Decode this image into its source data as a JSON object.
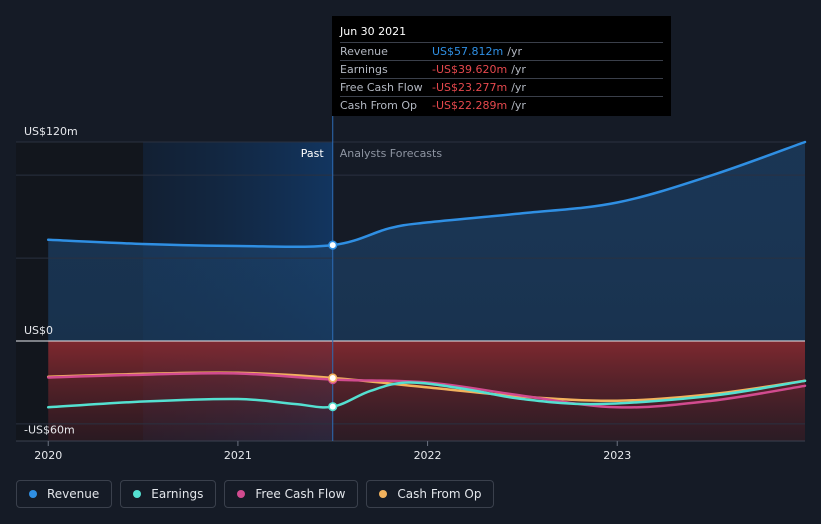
{
  "chart_data": {
    "type": "line",
    "title": "",
    "x_ticks": [
      "2020",
      "2021",
      "2022",
      "2023"
    ],
    "x_tick_values": [
      2020.0,
      2021.0,
      2022.0,
      2023.0
    ],
    "xlim": [
      2019.83,
      2023.99
    ],
    "y_axis_labels": [
      "US$120m",
      "US$0",
      "-US$60m"
    ],
    "y_axis_label_values": [
      120,
      0,
      -60
    ],
    "ylim": [
      -60,
      120
    ],
    "past_forecast_split": 2021.5,
    "past_shade_start": 2020.5,
    "region_labels": {
      "past": "Past",
      "forecast": "Analysts Forecasts"
    },
    "series": [
      {
        "name": "Revenue",
        "color": "#2f8fe3",
        "points": [
          [
            2020.0,
            61
          ],
          [
            2020.5,
            58.5
          ],
          [
            2021.0,
            57.3
          ],
          [
            2021.5,
            57.8
          ],
          [
            2021.8,
            68
          ],
          [
            2022.0,
            71.5
          ],
          [
            2022.5,
            77
          ],
          [
            2023.0,
            83.5
          ],
          [
            2023.5,
            100
          ],
          [
            2023.99,
            120
          ]
        ]
      },
      {
        "name": "Earnings",
        "color": "#54e0d1",
        "points": [
          [
            2020.0,
            -40
          ],
          [
            2020.5,
            -36.5
          ],
          [
            2021.0,
            -35
          ],
          [
            2021.3,
            -38
          ],
          [
            2021.5,
            -39.6
          ],
          [
            2021.7,
            -30
          ],
          [
            2021.9,
            -25
          ],
          [
            2022.2,
            -29
          ],
          [
            2022.5,
            -35
          ],
          [
            2022.9,
            -38
          ],
          [
            2023.5,
            -33
          ],
          [
            2023.99,
            -24
          ]
        ]
      },
      {
        "name": "Free Cash Flow",
        "color": "#d14b8f",
        "points": [
          [
            2020.0,
            -22
          ],
          [
            2020.5,
            -20.3
          ],
          [
            2021.0,
            -19.6
          ],
          [
            2021.5,
            -23.3
          ],
          [
            2022.0,
            -25
          ],
          [
            2022.5,
            -33
          ],
          [
            2023.0,
            -40
          ],
          [
            2023.5,
            -36
          ],
          [
            2023.99,
            -27
          ]
        ]
      },
      {
        "name": "Cash From Op",
        "color": "#f2b25d",
        "points": [
          [
            2020.0,
            -21.5
          ],
          [
            2020.5,
            -19.8
          ],
          [
            2021.0,
            -19.2
          ],
          [
            2021.5,
            -22.3
          ],
          [
            2022.0,
            -28
          ],
          [
            2022.5,
            -33.5
          ],
          [
            2023.0,
            -36
          ],
          [
            2023.5,
            -32
          ],
          [
            2023.99,
            -24
          ]
        ]
      }
    ]
  },
  "tooltip": {
    "date": "Jun 30 2021",
    "rows": [
      {
        "name": "Revenue",
        "value": "US$57.812m",
        "unit": "/yr",
        "color": "#2f8fe3"
      },
      {
        "name": "Earnings",
        "value": "-US$39.620m",
        "unit": "/yr",
        "color": "#e5484d"
      },
      {
        "name": "Free Cash Flow",
        "value": "-US$23.277m",
        "unit": "/yr",
        "color": "#e5484d"
      },
      {
        "name": "Cash From Op",
        "value": "-US$22.289m",
        "unit": "/yr",
        "color": "#e5484d"
      }
    ]
  },
  "legend": [
    {
      "label": "Revenue",
      "color": "#2f8fe3"
    },
    {
      "label": "Earnings",
      "color": "#54e0d1"
    },
    {
      "label": "Free Cash Flow",
      "color": "#d14b8f"
    },
    {
      "label": "Cash From Op",
      "color": "#f2b25d"
    }
  ]
}
